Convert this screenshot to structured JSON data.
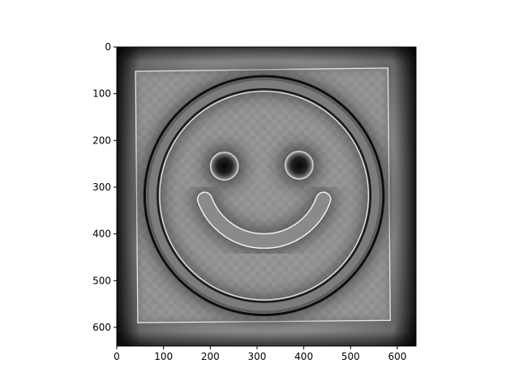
{
  "chart_data": {
    "type": "image",
    "title": "",
    "xlabel": "",
    "ylabel": "",
    "xlim": [
      0,
      640
    ],
    "ylim": [
      640,
      0
    ],
    "image_size": [
      640,
      640
    ],
    "colormap": "gray",
    "grid": false,
    "x_ticks": [
      {
        "value": 0,
        "label": "0"
      },
      {
        "value": 100,
        "label": "100"
      },
      {
        "value": 200,
        "label": "200"
      },
      {
        "value": 300,
        "label": "300"
      },
      {
        "value": 400,
        "label": "400"
      },
      {
        "value": 500,
        "label": "500"
      },
      {
        "value": 600,
        "label": "600"
      }
    ],
    "y_ticks": [
      {
        "value": 0,
        "label": "0"
      },
      {
        "value": 100,
        "label": "100"
      },
      {
        "value": 200,
        "label": "200"
      },
      {
        "value": 300,
        "label": "300"
      },
      {
        "value": 400,
        "label": "400"
      },
      {
        "value": 500,
        "label": "500"
      },
      {
        "value": 600,
        "label": "600"
      }
    ],
    "content": {
      "tilted_square": {
        "corners": [
          [
            40,
            52
          ],
          [
            580,
            45
          ],
          [
            585,
            585
          ],
          [
            45,
            590
          ]
        ]
      },
      "outer_ring": {
        "center": [
          315,
          318
        ],
        "inner_radius": 225,
        "outer_radius": 258
      },
      "eyes": [
        {
          "center": [
            230,
            255
          ],
          "radius": 30
        },
        {
          "center": [
            390,
            253
          ],
          "radius": 30
        }
      ],
      "mouth": {
        "center": [
          315,
          280
        ],
        "radius": 135,
        "thickness": 30,
        "start_deg": 20,
        "end_deg": 160
      }
    }
  }
}
